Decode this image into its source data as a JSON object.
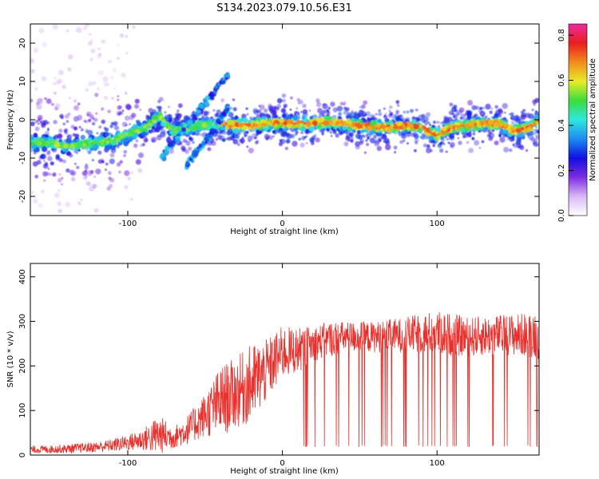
{
  "figure": {
    "title": "S134.2023.079.10.56.E31"
  },
  "chart_data": [
    {
      "type": "heatmap",
      "xlabel": "Height of straight line (km)",
      "ylabel": "Frequency (Hz)",
      "xlim": [
        -163,
        166
      ],
      "ylim": [
        -25,
        25
      ],
      "xticks": [
        -100,
        0,
        100
      ],
      "yticks": [
        -20,
        -10,
        0,
        10,
        20
      ],
      "grid": false,
      "ridge": {
        "x": [
          -160,
          -150,
          -140,
          -130,
          -120,
          -110,
          -100,
          -95,
          -90,
          -85,
          -80,
          -70,
          -60,
          -50,
          -40,
          -30,
          -20,
          -10,
          0,
          10,
          20,
          30,
          40,
          50,
          60,
          70,
          80,
          90,
          100,
          110,
          120,
          130,
          140,
          150,
          160,
          165
        ],
        "frequency": [
          -6,
          -6,
          -7,
          -6.5,
          -6,
          -5.5,
          -4,
          -3,
          -2.5,
          -1,
          1,
          -3,
          -2,
          -1.5,
          -1,
          -1.5,
          -1.5,
          -1,
          -0.8,
          -1,
          -1,
          -0.6,
          -1,
          -1.5,
          -1.8,
          -2,
          -1.5,
          -2,
          -4,
          -2,
          -1.5,
          -1,
          -1,
          -3,
          -2,
          -0.5
        ]
      },
      "colorbar": {
        "label": "Normalized spectral amplitude",
        "range": [
          0,
          0.85
        ],
        "ticks": [
          "0.0",
          "0.2",
          "0.4",
          "0.6",
          "0.8"
        ],
        "tick_values": [
          0,
          0.2,
          0.4,
          0.6,
          0.8
        ],
        "colors": [
          "#ffffff",
          "#d9b8f5",
          "#7d2be2",
          "#1010e0",
          "#1d8cf0",
          "#2ee8e0",
          "#3cdc3c",
          "#e8ec28",
          "#f08c1c",
          "#e81e1e",
          "#ee2aa0"
        ]
      }
    },
    {
      "type": "line",
      "xlabel": "Height of straight line (km)",
      "ylabel": "SNR (10 * v/v)",
      "xlim": [
        -163,
        166
      ],
      "ylim": [
        0,
        430
      ],
      "xticks": [
        -100,
        0,
        100
      ],
      "yticks": [
        0,
        100,
        200,
        300,
        400
      ],
      "grid": false,
      "color": "#e8302c",
      "envelope": {
        "x": [
          -163,
          -140,
          -120,
          -110,
          -100,
          -90,
          -80,
          -70,
          -60,
          -50,
          -40,
          -30,
          -20,
          -10,
          0,
          10,
          20,
          30,
          40,
          60,
          80,
          100,
          120,
          140,
          160,
          166
        ],
        "mean": [
          12,
          14,
          18,
          22,
          28,
          35,
          45,
          40,
          60,
          90,
          120,
          140,
          160,
          190,
          230,
          235,
          250,
          260,
          265,
          265,
          270,
          275,
          265,
          270,
          270,
          275
        ],
        "spread": [
          8,
          10,
          12,
          14,
          18,
          25,
          45,
          25,
          35,
          50,
          80,
          80,
          90,
          70,
          60,
          50,
          40,
          40,
          35,
          35,
          40,
          50,
          45,
          45,
          50,
          60
        ]
      },
      "spike_range_x": [
        12,
        166
      ],
      "spike_floor": 18
    }
  ]
}
